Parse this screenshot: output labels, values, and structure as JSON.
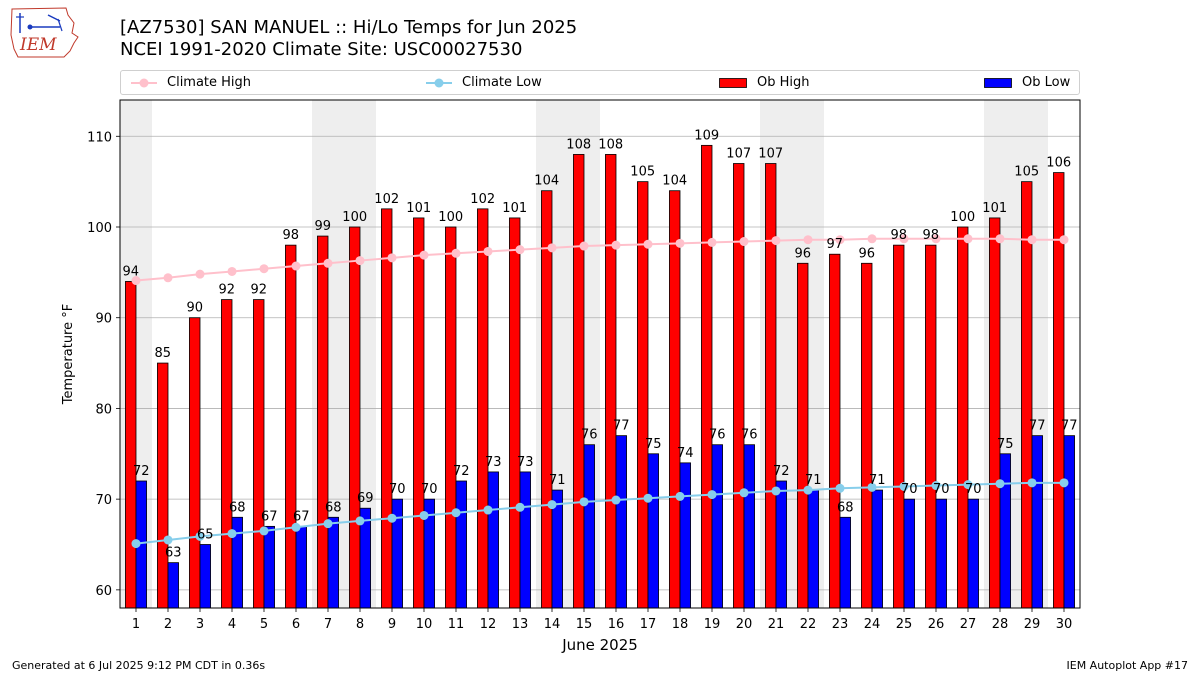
{
  "header": {
    "title_line1": "[AZ7530] SAN MANUEL :: Hi/Lo Temps for Jun 2025",
    "title_line2": "NCEI 1991-2020 Climate Site: USC00027530",
    "logo_text": "IEM"
  },
  "footer": {
    "generated": "Generated at 6 Jul 2025 9:12 PM CDT in 0.36s",
    "app": "IEM Autoplot App #17"
  },
  "colors": {
    "climate_high": "#ffc0cb",
    "climate_low": "#87ceeb",
    "ob_high": "#ff0000",
    "ob_low": "#0000ff",
    "weekend_band": "#eeeeee",
    "grid": "#b0b0b0"
  },
  "chart_data": {
    "type": "bar",
    "xlabel": "June 2025",
    "ylabel": "Temperature °F",
    "ylim": [
      58,
      114
    ],
    "yticks": [
      60,
      70,
      80,
      90,
      100,
      110
    ],
    "grid": "horizontal",
    "legend_position": "top",
    "categories": [
      "1",
      "2",
      "3",
      "4",
      "5",
      "6",
      "7",
      "8",
      "9",
      "10",
      "11",
      "12",
      "13",
      "14",
      "15",
      "16",
      "17",
      "18",
      "19",
      "20",
      "21",
      "22",
      "23",
      "24",
      "25",
      "26",
      "27",
      "28",
      "29",
      "30"
    ],
    "weekend_days": [
      1,
      7,
      8,
      14,
      15,
      21,
      22,
      28,
      29
    ],
    "series": [
      {
        "name": "Climate High",
        "kind": "line",
        "values": [
          94.1,
          94.4,
          94.8,
          95.1,
          95.4,
          95.7,
          96.0,
          96.3,
          96.6,
          96.9,
          97.1,
          97.3,
          97.5,
          97.7,
          97.9,
          98.0,
          98.1,
          98.2,
          98.3,
          98.4,
          98.5,
          98.6,
          98.6,
          98.7,
          98.7,
          98.7,
          98.7,
          98.7,
          98.6,
          98.6
        ]
      },
      {
        "name": "Climate Low",
        "kind": "line",
        "values": [
          65.1,
          65.5,
          65.9,
          66.2,
          66.5,
          66.9,
          67.3,
          67.6,
          67.9,
          68.2,
          68.5,
          68.8,
          69.1,
          69.4,
          69.7,
          69.9,
          70.1,
          70.3,
          70.5,
          70.7,
          70.9,
          71.0,
          71.2,
          71.3,
          71.4,
          71.5,
          71.6,
          71.7,
          71.8,
          71.8
        ]
      },
      {
        "name": "Ob High",
        "kind": "bar",
        "values": [
          94,
          85,
          90,
          92,
          92,
          98,
          99,
          100,
          102,
          101,
          100,
          102,
          101,
          104,
          108,
          108,
          105,
          104,
          109,
          107,
          107,
          96,
          97,
          96,
          98,
          98,
          100,
          101,
          105,
          106
        ]
      },
      {
        "name": "Ob Low",
        "kind": "bar",
        "values": [
          72,
          63,
          65,
          68,
          67,
          67,
          68,
          69,
          70,
          70,
          72,
          73,
          73,
          71,
          76,
          77,
          75,
          74,
          76,
          76,
          72,
          71,
          68,
          71,
          70,
          70,
          70,
          75,
          77,
          77
        ]
      }
    ]
  }
}
